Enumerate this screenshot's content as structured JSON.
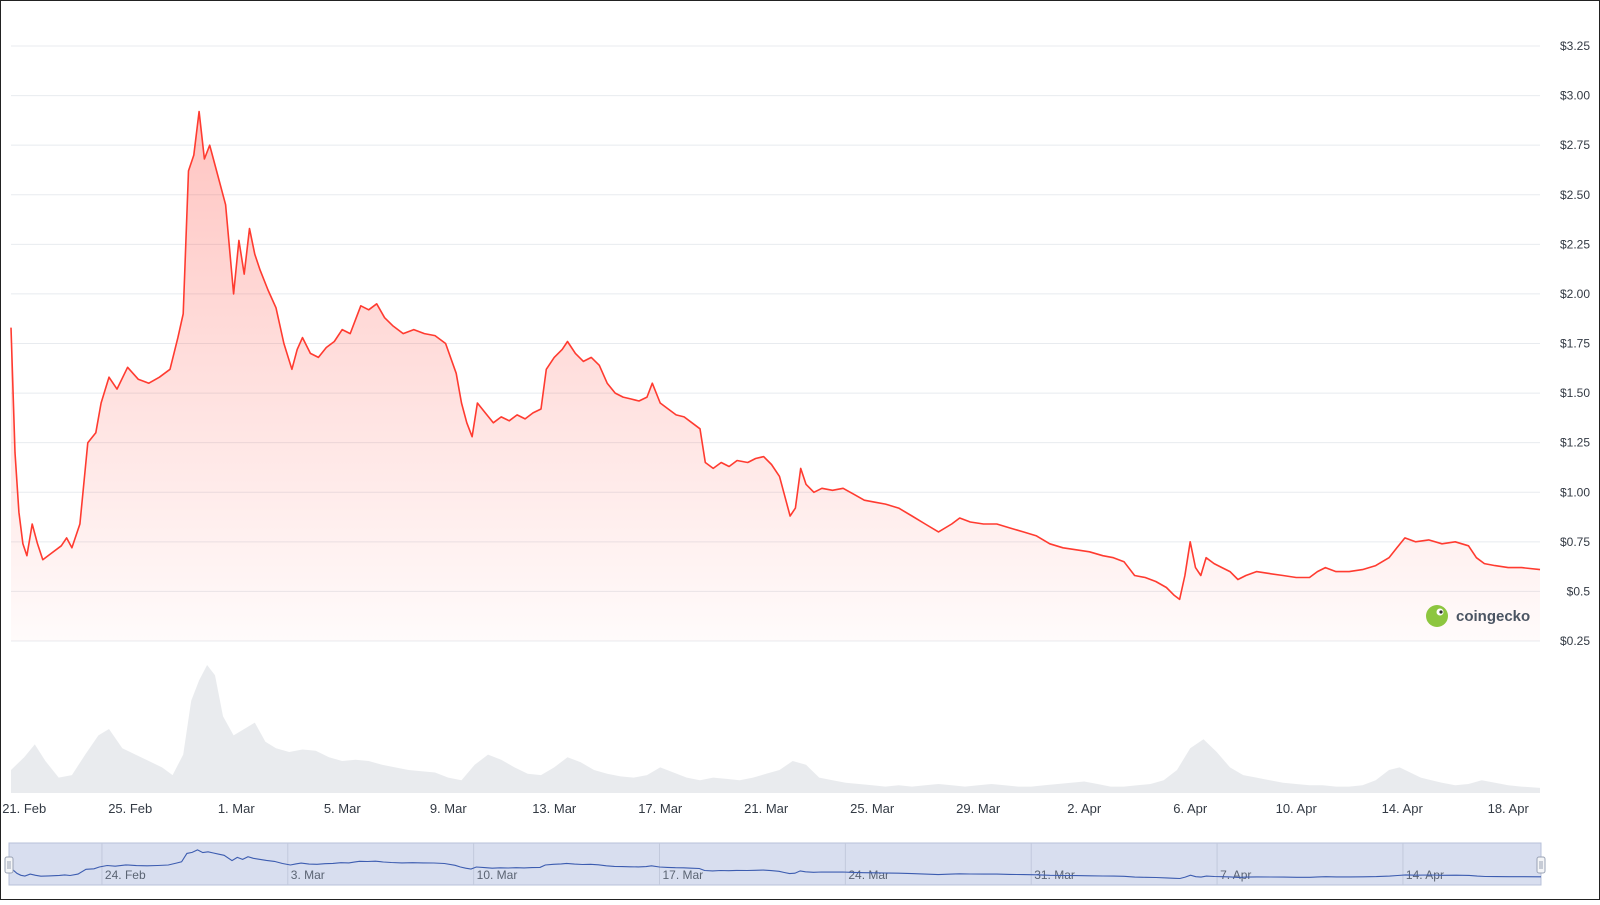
{
  "chart_data": {
    "type": "area",
    "watermark": "coingecko",
    "y_ticks": [
      "$0.25",
      "$0.5",
      "$0.75",
      "$1.00",
      "$1.25",
      "$1.50",
      "$1.75",
      "$2.00",
      "$2.25",
      "$2.50",
      "$2.75",
      "$3.00",
      "$3.25"
    ],
    "y_tick_values": [
      0.25,
      0.5,
      0.75,
      1.0,
      1.25,
      1.5,
      1.75,
      2.0,
      2.25,
      2.5,
      2.75,
      3.0,
      3.25
    ],
    "ylim": [
      0.25,
      3.25
    ],
    "grid": true,
    "x_ticks": [
      "21. Feb",
      "25. Feb",
      "1. Mar",
      "5. Mar",
      "9. Mar",
      "13. Mar",
      "17. Mar",
      "21. Mar",
      "25. Mar",
      "29. Mar",
      "2. Apr",
      "6. Apr",
      "10. Apr",
      "14. Apr",
      "18. Apr"
    ],
    "x_tick_days": [
      0.5,
      4.5,
      8.5,
      12.5,
      16.5,
      20.5,
      24.5,
      28.5,
      32.5,
      36.5,
      40.5,
      44.5,
      48.5,
      52.5,
      56.5
    ],
    "xlim_days": [
      0,
      57.7
    ],
    "price_series": {
      "color": "#ff3b30",
      "points": [
        [
          0.0,
          1.83
        ],
        [
          0.15,
          1.2
        ],
        [
          0.3,
          0.9
        ],
        [
          0.45,
          0.74
        ],
        [
          0.6,
          0.68
        ],
        [
          0.8,
          0.84
        ],
        [
          1.0,
          0.74
        ],
        [
          1.2,
          0.66
        ],
        [
          1.5,
          0.69
        ],
        [
          1.9,
          0.73
        ],
        [
          2.1,
          0.77
        ],
        [
          2.3,
          0.72
        ],
        [
          2.6,
          0.84
        ],
        [
          2.9,
          1.25
        ],
        [
          3.2,
          1.3
        ],
        [
          3.4,
          1.45
        ],
        [
          3.7,
          1.58
        ],
        [
          4.0,
          1.52
        ],
        [
          4.4,
          1.63
        ],
        [
          4.8,
          1.57
        ],
        [
          5.2,
          1.55
        ],
        [
          5.6,
          1.58
        ],
        [
          6.0,
          1.62
        ],
        [
          6.3,
          1.78
        ],
        [
          6.5,
          1.9
        ],
        [
          6.7,
          2.62
        ],
        [
          6.9,
          2.7
        ],
        [
          7.1,
          2.92
        ],
        [
          7.3,
          2.68
        ],
        [
          7.5,
          2.75
        ],
        [
          7.7,
          2.65
        ],
        [
          7.9,
          2.55
        ],
        [
          8.1,
          2.45
        ],
        [
          8.4,
          2.0
        ],
        [
          8.6,
          2.27
        ],
        [
          8.8,
          2.1
        ],
        [
          9.0,
          2.33
        ],
        [
          9.2,
          2.2
        ],
        [
          9.4,
          2.12
        ],
        [
          9.7,
          2.02
        ],
        [
          10.0,
          1.93
        ],
        [
          10.3,
          1.75
        ],
        [
          10.6,
          1.62
        ],
        [
          10.8,
          1.72
        ],
        [
          11.0,
          1.78
        ],
        [
          11.3,
          1.7
        ],
        [
          11.6,
          1.68
        ],
        [
          11.9,
          1.73
        ],
        [
          12.2,
          1.76
        ],
        [
          12.5,
          1.82
        ],
        [
          12.8,
          1.8
        ],
        [
          13.0,
          1.87
        ],
        [
          13.2,
          1.94
        ],
        [
          13.5,
          1.92
        ],
        [
          13.8,
          1.95
        ],
        [
          14.1,
          1.88
        ],
        [
          14.4,
          1.84
        ],
        [
          14.8,
          1.8
        ],
        [
          15.2,
          1.82
        ],
        [
          15.6,
          1.8
        ],
        [
          16.0,
          1.79
        ],
        [
          16.4,
          1.75
        ],
        [
          16.8,
          1.6
        ],
        [
          17.0,
          1.45
        ],
        [
          17.2,
          1.35
        ],
        [
          17.4,
          1.28
        ],
        [
          17.6,
          1.45
        ],
        [
          17.9,
          1.4
        ],
        [
          18.2,
          1.35
        ],
        [
          18.5,
          1.38
        ],
        [
          18.8,
          1.36
        ],
        [
          19.1,
          1.39
        ],
        [
          19.4,
          1.37
        ],
        [
          19.7,
          1.4
        ],
        [
          20.0,
          1.42
        ],
        [
          20.2,
          1.62
        ],
        [
          20.5,
          1.68
        ],
        [
          20.8,
          1.72
        ],
        [
          21.0,
          1.76
        ],
        [
          21.3,
          1.7
        ],
        [
          21.6,
          1.66
        ],
        [
          21.9,
          1.68
        ],
        [
          22.2,
          1.64
        ],
        [
          22.5,
          1.55
        ],
        [
          22.8,
          1.5
        ],
        [
          23.1,
          1.48
        ],
        [
          23.4,
          1.47
        ],
        [
          23.7,
          1.46
        ],
        [
          24.0,
          1.48
        ],
        [
          24.2,
          1.55
        ],
        [
          24.5,
          1.45
        ],
        [
          24.8,
          1.42
        ],
        [
          25.1,
          1.39
        ],
        [
          25.4,
          1.38
        ],
        [
          25.7,
          1.35
        ],
        [
          26.0,
          1.32
        ],
        [
          26.2,
          1.15
        ],
        [
          26.5,
          1.12
        ],
        [
          26.8,
          1.15
        ],
        [
          27.1,
          1.13
        ],
        [
          27.4,
          1.16
        ],
        [
          27.8,
          1.15
        ],
        [
          28.1,
          1.17
        ],
        [
          28.4,
          1.18
        ],
        [
          28.7,
          1.14
        ],
        [
          29.0,
          1.08
        ],
        [
          29.2,
          0.98
        ],
        [
          29.4,
          0.88
        ],
        [
          29.6,
          0.92
        ],
        [
          29.8,
          1.12
        ],
        [
          30.0,
          1.04
        ],
        [
          30.3,
          1.0
        ],
        [
          30.6,
          1.02
        ],
        [
          31.0,
          1.01
        ],
        [
          31.4,
          1.02
        ],
        [
          31.8,
          0.99
        ],
        [
          32.2,
          0.96
        ],
        [
          32.6,
          0.95
        ],
        [
          33.0,
          0.94
        ],
        [
          33.5,
          0.92
        ],
        [
          34.0,
          0.88
        ],
        [
          34.5,
          0.84
        ],
        [
          35.0,
          0.8
        ],
        [
          35.5,
          0.84
        ],
        [
          35.8,
          0.87
        ],
        [
          36.2,
          0.85
        ],
        [
          36.7,
          0.84
        ],
        [
          37.2,
          0.84
        ],
        [
          37.7,
          0.82
        ],
        [
          38.2,
          0.8
        ],
        [
          38.7,
          0.78
        ],
        [
          39.2,
          0.74
        ],
        [
          39.7,
          0.72
        ],
        [
          40.2,
          0.71
        ],
        [
          40.7,
          0.7
        ],
        [
          41.2,
          0.68
        ],
        [
          41.6,
          0.67
        ],
        [
          42.0,
          0.65
        ],
        [
          42.4,
          0.58
        ],
        [
          42.8,
          0.57
        ],
        [
          43.2,
          0.55
        ],
        [
          43.6,
          0.52
        ],
        [
          43.9,
          0.48
        ],
        [
          44.1,
          0.46
        ],
        [
          44.3,
          0.58
        ],
        [
          44.5,
          0.75
        ],
        [
          44.7,
          0.62
        ],
        [
          44.9,
          0.58
        ],
        [
          45.1,
          0.67
        ],
        [
          45.4,
          0.64
        ],
        [
          45.7,
          0.62
        ],
        [
          46.0,
          0.6
        ],
        [
          46.3,
          0.56
        ],
        [
          46.6,
          0.58
        ],
        [
          47.0,
          0.6
        ],
        [
          47.5,
          0.59
        ],
        [
          48.0,
          0.58
        ],
        [
          48.5,
          0.57
        ],
        [
          49.0,
          0.57
        ],
        [
          49.3,
          0.6
        ],
        [
          49.6,
          0.62
        ],
        [
          50.0,
          0.6
        ],
        [
          50.5,
          0.6
        ],
        [
          51.0,
          0.61
        ],
        [
          51.5,
          0.63
        ],
        [
          52.0,
          0.67
        ],
        [
          52.3,
          0.72
        ],
        [
          52.6,
          0.77
        ],
        [
          53.0,
          0.75
        ],
        [
          53.5,
          0.76
        ],
        [
          54.0,
          0.74
        ],
        [
          54.5,
          0.75
        ],
        [
          55.0,
          0.73
        ],
        [
          55.3,
          0.67
        ],
        [
          55.6,
          0.64
        ],
        [
          56.0,
          0.63
        ],
        [
          56.5,
          0.62
        ],
        [
          57.0,
          0.62
        ],
        [
          57.7,
          0.61
        ]
      ]
    },
    "volume_series": {
      "color": "#e5e7eb",
      "max_volume_scale": [
        0,
        1
      ],
      "points": [
        [
          0.0,
          0.18
        ],
        [
          0.5,
          0.28
        ],
        [
          0.9,
          0.38
        ],
        [
          1.3,
          0.25
        ],
        [
          1.8,
          0.12
        ],
        [
          2.3,
          0.14
        ],
        [
          2.8,
          0.3
        ],
        [
          3.3,
          0.45
        ],
        [
          3.7,
          0.5
        ],
        [
          4.2,
          0.35
        ],
        [
          4.7,
          0.3
        ],
        [
          5.2,
          0.25
        ],
        [
          5.7,
          0.2
        ],
        [
          6.1,
          0.14
        ],
        [
          6.5,
          0.3
        ],
        [
          6.8,
          0.72
        ],
        [
          7.1,
          0.88
        ],
        [
          7.4,
          1.0
        ],
        [
          7.7,
          0.92
        ],
        [
          8.0,
          0.6
        ],
        [
          8.4,
          0.45
        ],
        [
          8.8,
          0.5
        ],
        [
          9.2,
          0.55
        ],
        [
          9.6,
          0.4
        ],
        [
          10.0,
          0.35
        ],
        [
          10.5,
          0.32
        ],
        [
          11.0,
          0.34
        ],
        [
          11.5,
          0.33
        ],
        [
          12.0,
          0.28
        ],
        [
          12.5,
          0.25
        ],
        [
          13.0,
          0.26
        ],
        [
          13.5,
          0.25
        ],
        [
          14.0,
          0.22
        ],
        [
          14.5,
          0.2
        ],
        [
          15.0,
          0.18
        ],
        [
          15.5,
          0.17
        ],
        [
          16.0,
          0.16
        ],
        [
          16.5,
          0.12
        ],
        [
          17.0,
          0.1
        ],
        [
          17.5,
          0.22
        ],
        [
          18.0,
          0.3
        ],
        [
          18.5,
          0.26
        ],
        [
          19.0,
          0.2
        ],
        [
          19.5,
          0.15
        ],
        [
          20.0,
          0.14
        ],
        [
          20.5,
          0.2
        ],
        [
          21.0,
          0.28
        ],
        [
          21.5,
          0.24
        ],
        [
          22.0,
          0.18
        ],
        [
          22.5,
          0.15
        ],
        [
          23.0,
          0.13
        ],
        [
          23.5,
          0.12
        ],
        [
          24.0,
          0.14
        ],
        [
          24.5,
          0.2
        ],
        [
          25.0,
          0.16
        ],
        [
          25.5,
          0.12
        ],
        [
          26.0,
          0.1
        ],
        [
          26.5,
          0.12
        ],
        [
          27.0,
          0.11
        ],
        [
          27.5,
          0.1
        ],
        [
          28.0,
          0.12
        ],
        [
          28.5,
          0.15
        ],
        [
          29.0,
          0.18
        ],
        [
          29.5,
          0.25
        ],
        [
          30.0,
          0.22
        ],
        [
          30.5,
          0.12
        ],
        [
          31.0,
          0.1
        ],
        [
          31.5,
          0.08
        ],
        [
          32.0,
          0.07
        ],
        [
          32.5,
          0.06
        ],
        [
          33.0,
          0.05
        ],
        [
          33.5,
          0.06
        ],
        [
          34.0,
          0.05
        ],
        [
          34.5,
          0.06
        ],
        [
          35.0,
          0.07
        ],
        [
          35.5,
          0.06
        ],
        [
          36.0,
          0.05
        ],
        [
          36.5,
          0.06
        ],
        [
          37.0,
          0.07
        ],
        [
          37.5,
          0.06
        ],
        [
          38.0,
          0.05
        ],
        [
          38.5,
          0.05
        ],
        [
          39.0,
          0.06
        ],
        [
          39.5,
          0.07
        ],
        [
          40.0,
          0.08
        ],
        [
          40.5,
          0.09
        ],
        [
          41.0,
          0.07
        ],
        [
          41.5,
          0.05
        ],
        [
          42.0,
          0.05
        ],
        [
          42.5,
          0.06
        ],
        [
          43.0,
          0.07
        ],
        [
          43.5,
          0.1
        ],
        [
          44.0,
          0.18
        ],
        [
          44.5,
          0.35
        ],
        [
          45.0,
          0.42
        ],
        [
          45.5,
          0.32
        ],
        [
          46.0,
          0.2
        ],
        [
          46.5,
          0.14
        ],
        [
          47.0,
          0.12
        ],
        [
          47.5,
          0.1
        ],
        [
          48.0,
          0.08
        ],
        [
          48.5,
          0.07
        ],
        [
          49.0,
          0.06
        ],
        [
          49.5,
          0.06
        ],
        [
          50.0,
          0.05
        ],
        [
          50.5,
          0.05
        ],
        [
          51.0,
          0.06
        ],
        [
          51.5,
          0.1
        ],
        [
          52.0,
          0.18
        ],
        [
          52.4,
          0.2
        ],
        [
          52.8,
          0.16
        ],
        [
          53.2,
          0.12
        ],
        [
          53.6,
          0.1
        ],
        [
          54.0,
          0.08
        ],
        [
          54.5,
          0.06
        ],
        [
          55.0,
          0.07
        ],
        [
          55.5,
          0.1
        ],
        [
          56.0,
          0.08
        ],
        [
          56.5,
          0.06
        ],
        [
          57.0,
          0.05
        ],
        [
          57.7,
          0.04
        ]
      ]
    },
    "navigator": {
      "ticks": [
        "24. Feb",
        "3. Mar",
        "10. Mar",
        "17. Mar",
        "24. Mar",
        "31. Mar",
        "7. Apr",
        "14. Apr"
      ],
      "tick_days": [
        3.5,
        10.5,
        17.5,
        24.5,
        31.5,
        38.5,
        45.5,
        52.5
      ],
      "line_color": "#3c5cb0",
      "fill_color": "#d8deef"
    }
  }
}
